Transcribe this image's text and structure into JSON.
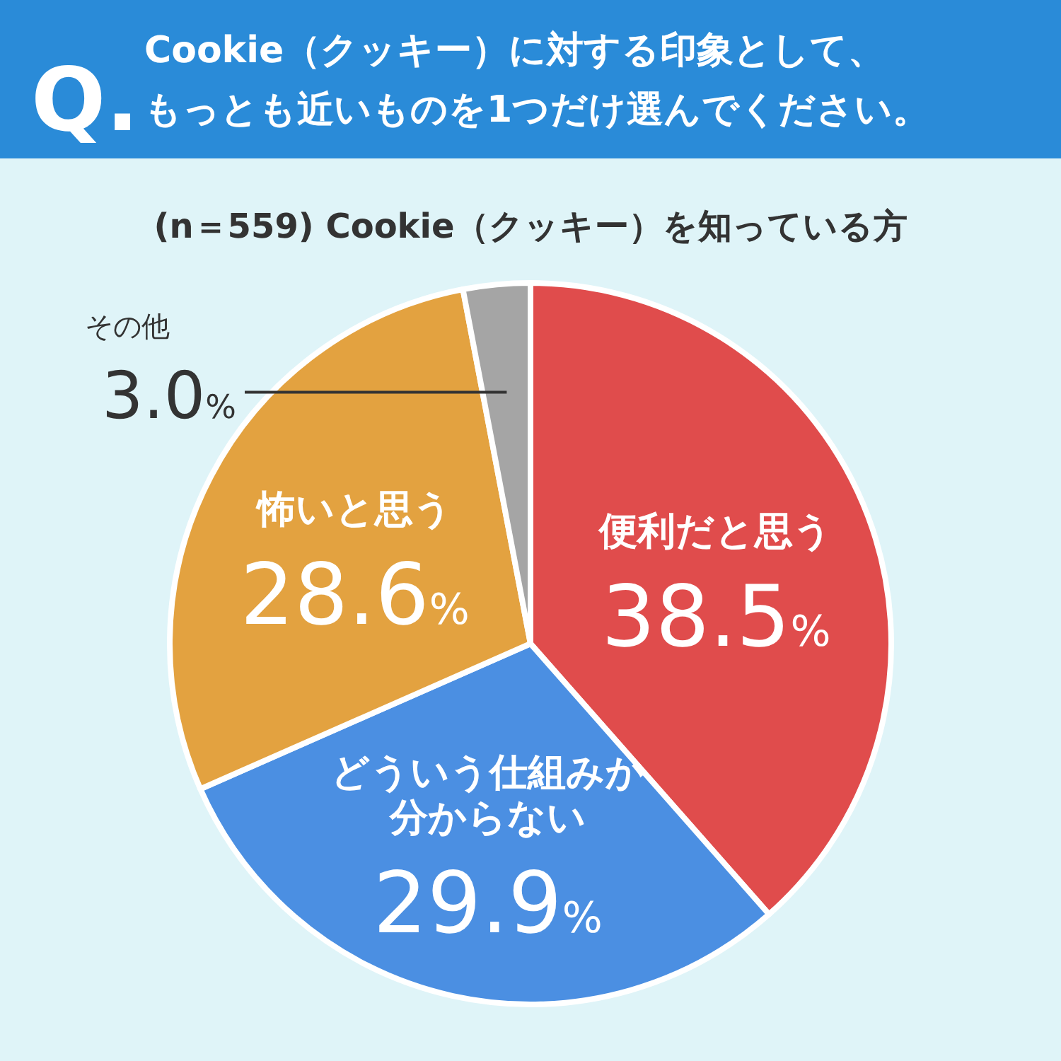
{
  "chart_data": {
    "type": "pie",
    "title": "Cookie（クッキー）に対する印象として、もっとも近いものを1つだけ選んでください。",
    "subtitle": "(n＝559) Cookie（クッキー）を知っている方",
    "annotations": [
      "Q."
    ],
    "categories": [
      "便利だと思う",
      "どういう仕組みか分からない",
      "怖いと思う",
      "その他"
    ],
    "values": [
      38.5,
      29.9,
      28.6,
      3.0
    ],
    "colors": [
      "#e04c4c",
      "#4b8fe2",
      "#e3a240",
      "#a5a5a5"
    ],
    "value_labels": [
      "38.5%",
      "29.9%",
      "28.6%",
      "3.0%"
    ]
  }
}
